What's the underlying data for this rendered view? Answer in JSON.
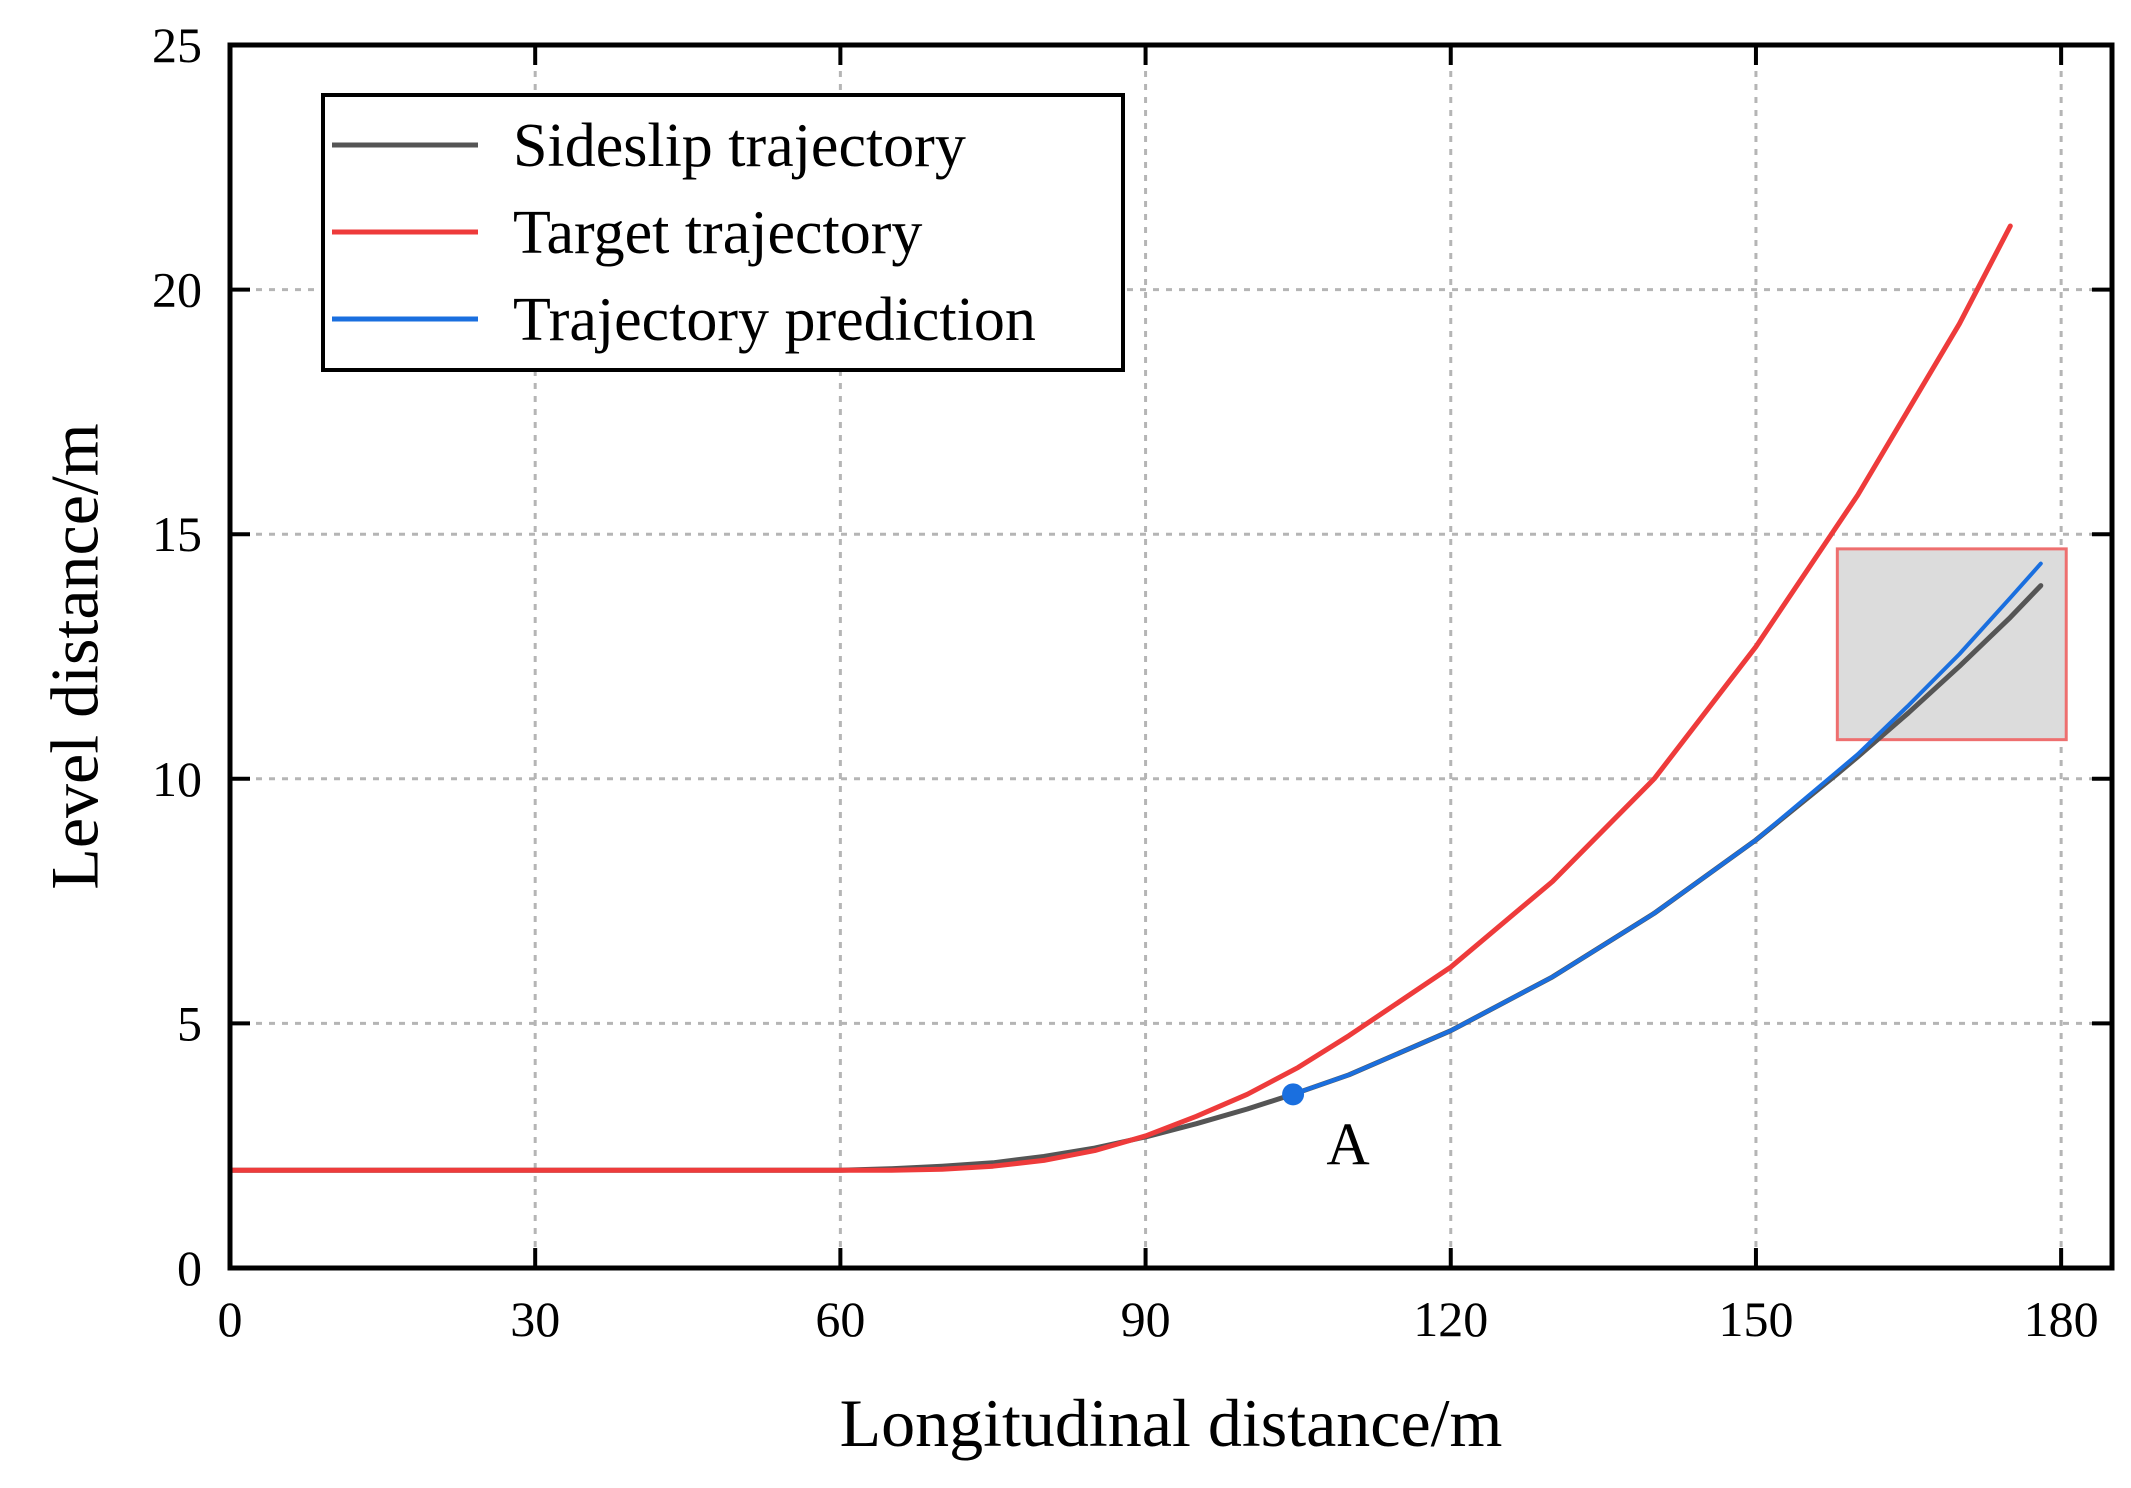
{
  "chart_data": {
    "type": "line",
    "xlabel": "Longitudinal distance/m",
    "ylabel": "Level distance/m",
    "xlim": [
      0,
      185
    ],
    "ylim": [
      0,
      25
    ],
    "xticks": [
      0,
      30,
      60,
      90,
      120,
      150,
      180
    ],
    "yticks": [
      0,
      5,
      10,
      15,
      20,
      25
    ],
    "grid": true,
    "legend_position": "top-left",
    "series": [
      {
        "name": "Sideslip trajectory",
        "color": "#555555",
        "x": [
          0,
          30,
          60,
          65,
          70,
          75,
          80,
          85,
          90,
          95,
          100,
          104.5,
          110,
          120,
          130,
          140,
          150,
          158,
          160,
          165,
          170,
          175,
          178
        ],
        "y": [
          2.0,
          2.0,
          2.0,
          2.03,
          2.08,
          2.15,
          2.28,
          2.45,
          2.68,
          2.95,
          3.25,
          3.55,
          3.95,
          4.85,
          5.95,
          7.25,
          8.75,
          10.1,
          10.45,
          11.35,
          12.3,
          13.3,
          13.95
        ]
      },
      {
        "name": "Target trajectory",
        "color": "#ee3b3b",
        "x": [
          0,
          30,
          60,
          65,
          70,
          75,
          80,
          85,
          90,
          95,
          100,
          105,
          110,
          120,
          130,
          140,
          150,
          160,
          170,
          175
        ],
        "y": [
          2.0,
          2.0,
          2.0,
          2.0,
          2.02,
          2.08,
          2.2,
          2.4,
          2.7,
          3.1,
          3.55,
          4.1,
          4.75,
          6.15,
          7.9,
          10.0,
          12.7,
          15.8,
          19.3,
          21.3
        ]
      },
      {
        "name": "Trajectory prediction",
        "color": "#1a6fdf",
        "x": [
          104.5,
          110,
          120,
          130,
          140,
          150,
          158,
          160,
          165,
          170,
          175,
          178
        ],
        "y": [
          3.55,
          3.95,
          4.85,
          5.95,
          7.25,
          8.75,
          10.15,
          10.5,
          11.5,
          12.55,
          13.7,
          14.4
        ]
      }
    ],
    "annotations": [
      {
        "label": "A",
        "x": 104.5,
        "y": 3.55
      }
    ],
    "highlight_box": {
      "x_range": [
        158,
        180.5
      ],
      "y_range": [
        10.8,
        14.7
      ]
    }
  }
}
